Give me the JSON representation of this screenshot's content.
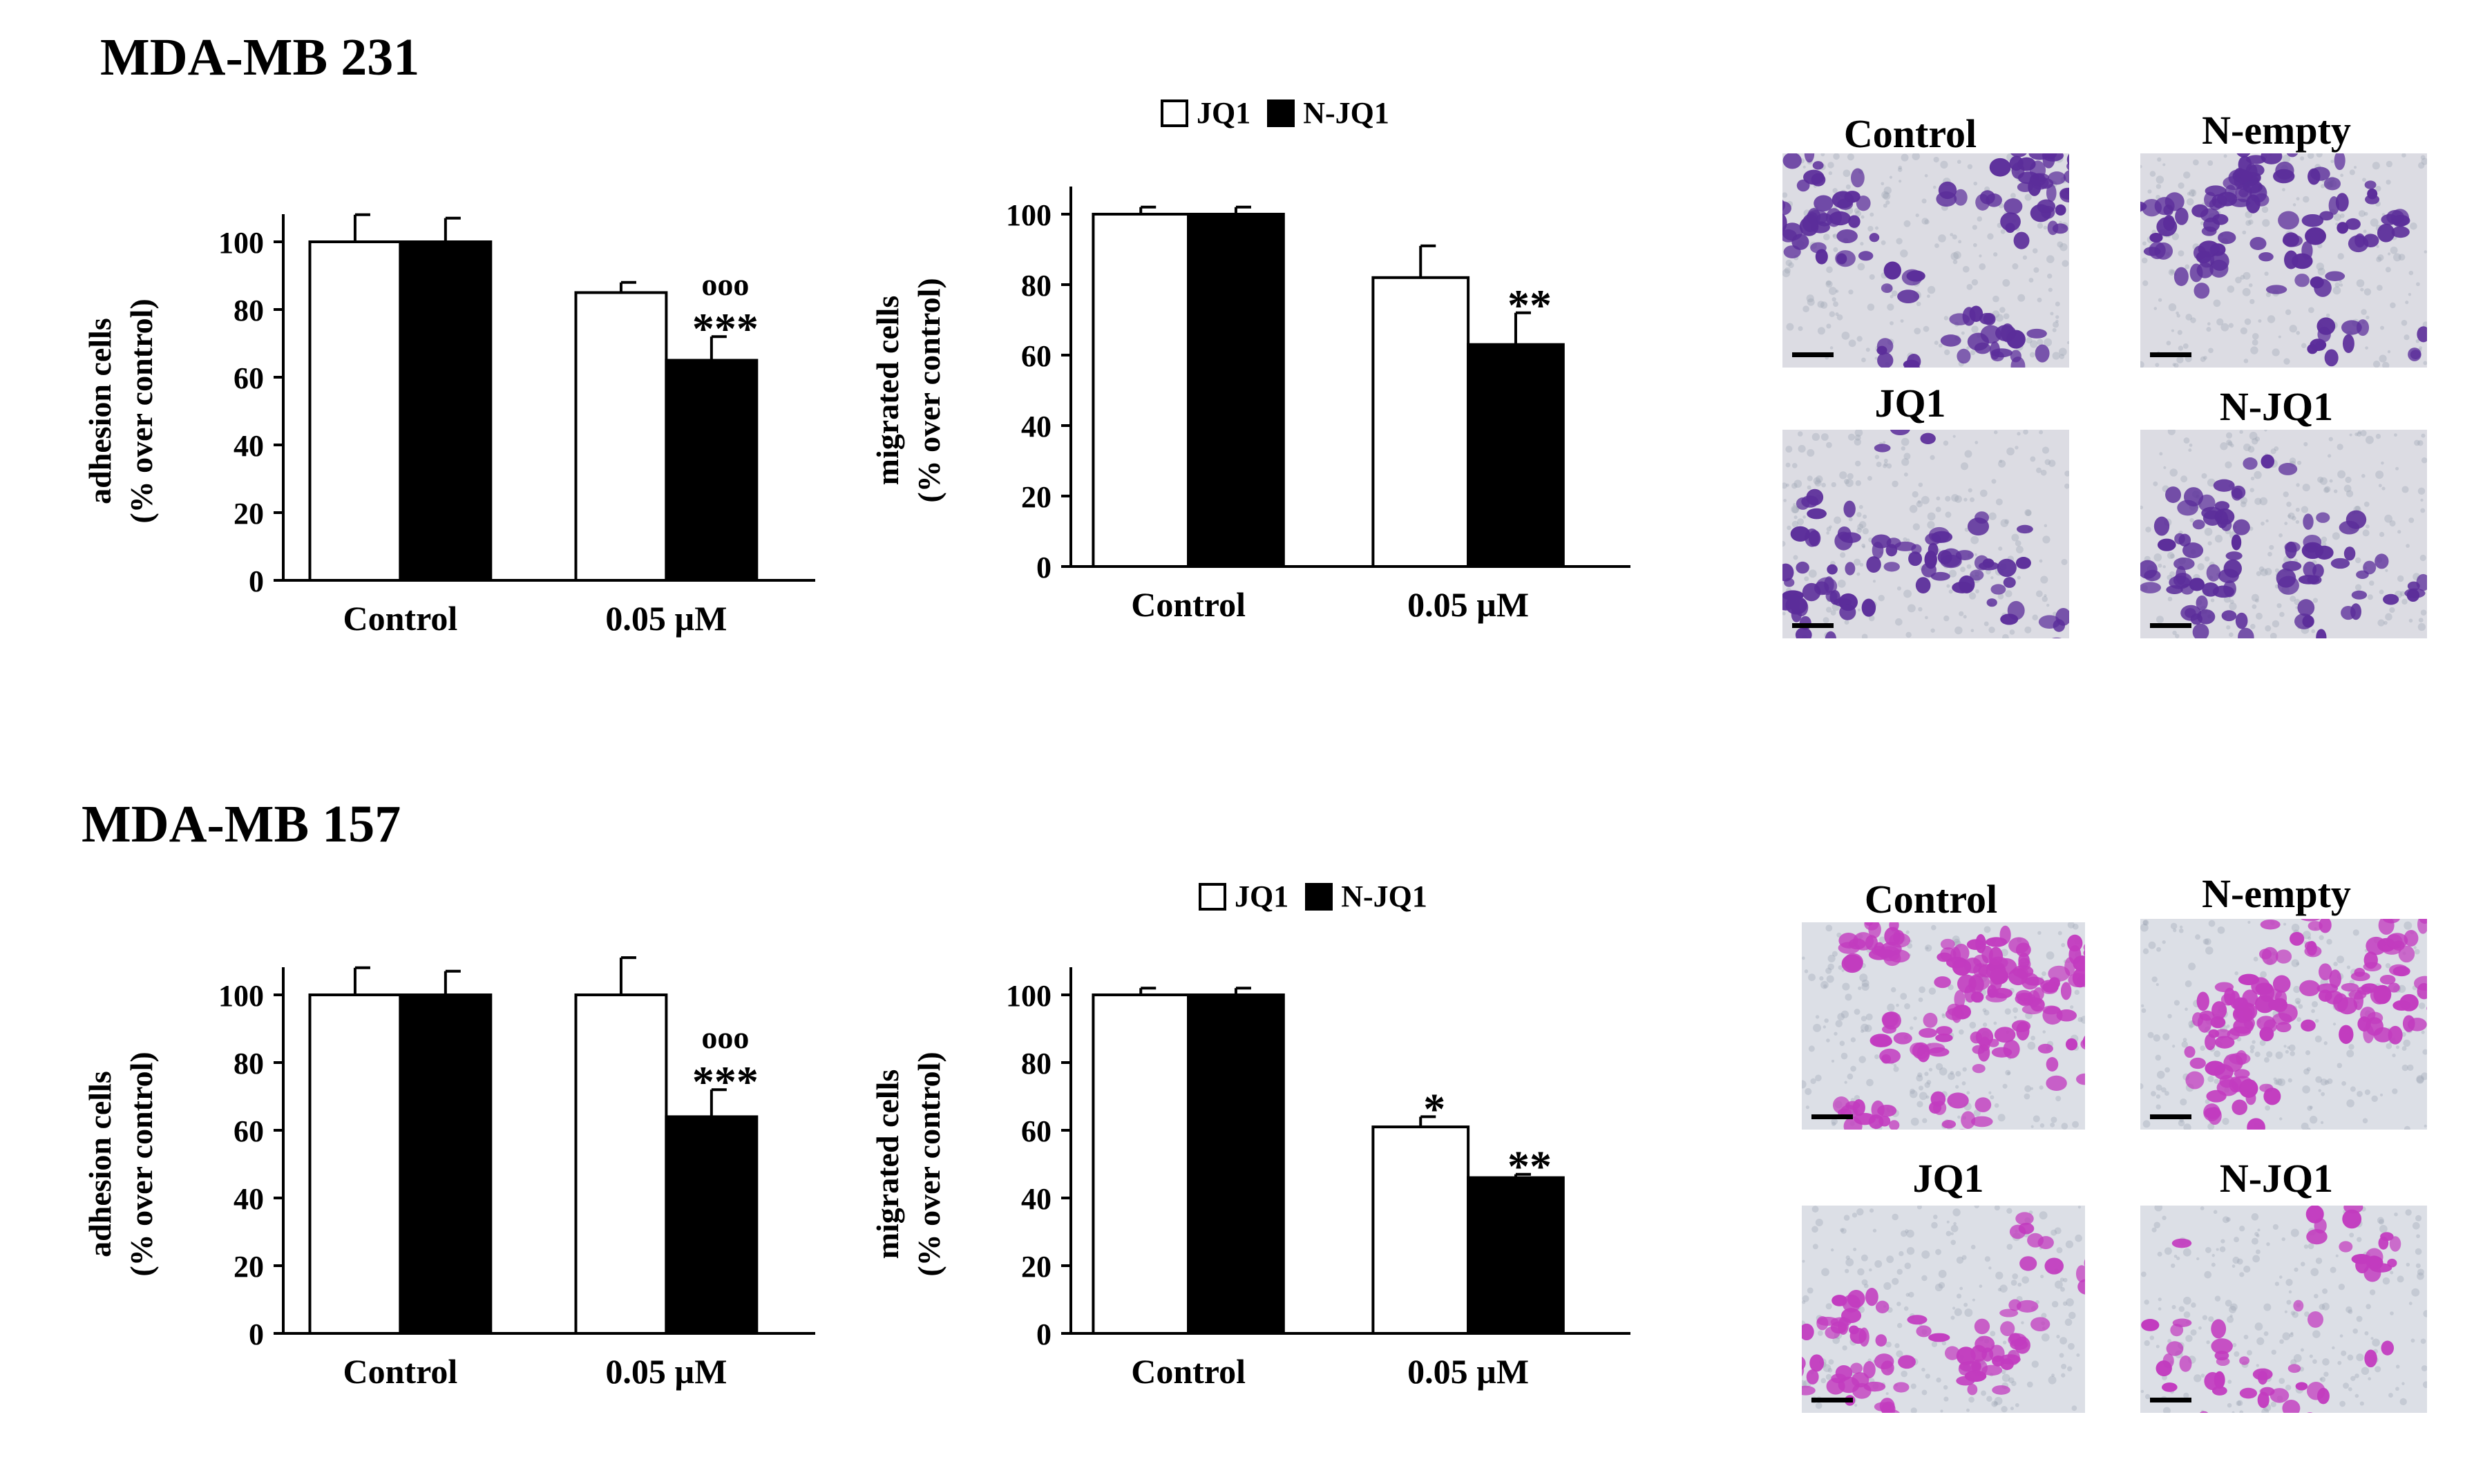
{
  "panels": [
    {
      "title": "MDA-MB 231",
      "legend": {
        "items": [
          {
            "label": "JQ1",
            "color": "#ffffff"
          },
          {
            "label": "N-JQ1",
            "color": "#000000"
          }
        ]
      },
      "micrographs": {
        "labels": [
          "Control",
          "N-empty",
          "JQ1",
          "N-JQ1"
        ],
        "background": "#dcdce3",
        "cell_color": "#5b2d9a"
      }
    },
    {
      "title": "MDA-MB 157",
      "legend": {
        "items": [
          {
            "label": "JQ1",
            "color": "#ffffff"
          },
          {
            "label": "N-JQ1",
            "color": "#000000"
          }
        ]
      },
      "micrographs": {
        "labels": [
          "Control",
          "N-empty",
          "JQ1",
          "N-JQ1"
        ],
        "background": "#dcdfe6",
        "cell_color": "#c23bbf"
      }
    }
  ],
  "chart_data": [
    {
      "type": "bar",
      "ylabel": [
        "adhesion cells",
        "(% over control)"
      ],
      "ylim": [
        0,
        100
      ],
      "yticks": [
        0,
        20,
        40,
        60,
        80,
        100
      ],
      "categories": [
        "Control",
        "0.05 µM"
      ],
      "series": [
        {
          "name": "JQ1",
          "color": "#ffffff",
          "values": [
            100,
            85
          ],
          "errors": [
            8,
            3
          ]
        },
        {
          "name": "N-JQ1",
          "color": "#000000",
          "values": [
            100,
            65
          ],
          "errors": [
            7,
            7
          ]
        }
      ],
      "annotations": [
        {
          "category": 1,
          "series": 1,
          "lines": [
            "ooo",
            "***"
          ]
        }
      ]
    },
    {
      "type": "bar",
      "ylabel": [
        "migrated cells",
        "(% over control)"
      ],
      "ylim": [
        0,
        100
      ],
      "yticks": [
        0,
        20,
        40,
        60,
        80,
        100
      ],
      "categories": [
        "Control",
        "0.05 µM"
      ],
      "series": [
        {
          "name": "JQ1",
          "color": "#ffffff",
          "values": [
            100,
            82
          ],
          "errors": [
            2,
            9
          ]
        },
        {
          "name": "N-JQ1",
          "color": "#000000",
          "values": [
            100,
            63
          ],
          "errors": [
            2,
            9
          ]
        }
      ],
      "annotations": [
        {
          "category": 1,
          "series": 1,
          "lines": [
            "**"
          ]
        }
      ]
    },
    {
      "type": "bar",
      "ylabel": [
        "adhesion cells",
        "(% over control)"
      ],
      "ylim": [
        0,
        100
      ],
      "yticks": [
        0,
        20,
        40,
        60,
        80,
        100
      ],
      "categories": [
        "Control",
        "0.05 µM"
      ],
      "series": [
        {
          "name": "JQ1",
          "color": "#ffffff",
          "values": [
            100,
            100
          ],
          "errors": [
            8,
            11
          ]
        },
        {
          "name": "N-JQ1",
          "color": "#000000",
          "values": [
            100,
            64
          ],
          "errors": [
            7,
            8
          ]
        }
      ],
      "annotations": [
        {
          "category": 1,
          "series": 1,
          "lines": [
            "ooo",
            "***"
          ]
        }
      ]
    },
    {
      "type": "bar",
      "ylabel": [
        "migrated cells",
        "(% over control)"
      ],
      "ylim": [
        0,
        100
      ],
      "yticks": [
        0,
        20,
        40,
        60,
        80,
        100
      ],
      "categories": [
        "Control",
        "0.05 µM"
      ],
      "series": [
        {
          "name": "JQ1",
          "color": "#ffffff",
          "values": [
            100,
            61
          ],
          "errors": [
            2,
            3
          ]
        },
        {
          "name": "N-JQ1",
          "color": "#000000",
          "values": [
            100,
            46
          ],
          "errors": [
            2,
            1
          ]
        }
      ],
      "annotations": [
        {
          "category": 1,
          "series": 0,
          "lines": [
            "*"
          ]
        },
        {
          "category": 1,
          "series": 1,
          "lines": [
            "**"
          ]
        }
      ]
    }
  ]
}
